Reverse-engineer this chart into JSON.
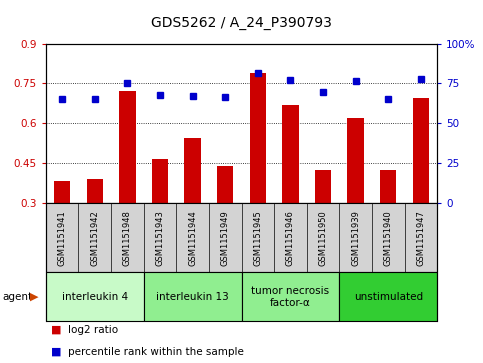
{
  "title": "GDS5262 / A_24_P390793",
  "samples": [
    "GSM1151941",
    "GSM1151942",
    "GSM1151948",
    "GSM1151943",
    "GSM1151944",
    "GSM1151949",
    "GSM1151945",
    "GSM1151946",
    "GSM1151950",
    "GSM1151939",
    "GSM1151940",
    "GSM1151947"
  ],
  "log2_ratio": [
    0.385,
    0.39,
    0.72,
    0.465,
    0.545,
    0.44,
    0.79,
    0.67,
    0.425,
    0.62,
    0.425,
    0.695
  ],
  "percentile": [
    65.5,
    65.5,
    75.5,
    67.5,
    67.0,
    66.5,
    81.5,
    77.0,
    69.5,
    76.5,
    65.5,
    77.5
  ],
  "agent_groups": [
    {
      "label": "interleukin 4",
      "start": 0,
      "end": 2,
      "color": "#c8fac8"
    },
    {
      "label": "interleukin 13",
      "start": 3,
      "end": 5,
      "color": "#90ee90"
    },
    {
      "label": "tumor necrosis\nfactor-α",
      "start": 6,
      "end": 8,
      "color": "#90ee90"
    },
    {
      "label": "unstimulated",
      "start": 9,
      "end": 11,
      "color": "#32cd32"
    }
  ],
  "bar_color": "#cc0000",
  "dot_color": "#0000cc",
  "ylim_left": [
    0.3,
    0.9
  ],
  "ylim_right": [
    0,
    100
  ],
  "yticks_left": [
    0.3,
    0.45,
    0.6,
    0.75,
    0.9
  ],
  "yticks_right": [
    0,
    25,
    50,
    75,
    100
  ],
  "ytick_labels_right": [
    "0",
    "25",
    "50",
    "75",
    "100%"
  ],
  "title_fontsize": 10,
  "tick_fontsize": 7.5,
  "sample_fontsize": 6,
  "agent_fontsize": 7.5,
  "legend_fontsize": 7.5,
  "plot_bg": "#ffffff",
  "label_box_bg": "#d3d3d3"
}
